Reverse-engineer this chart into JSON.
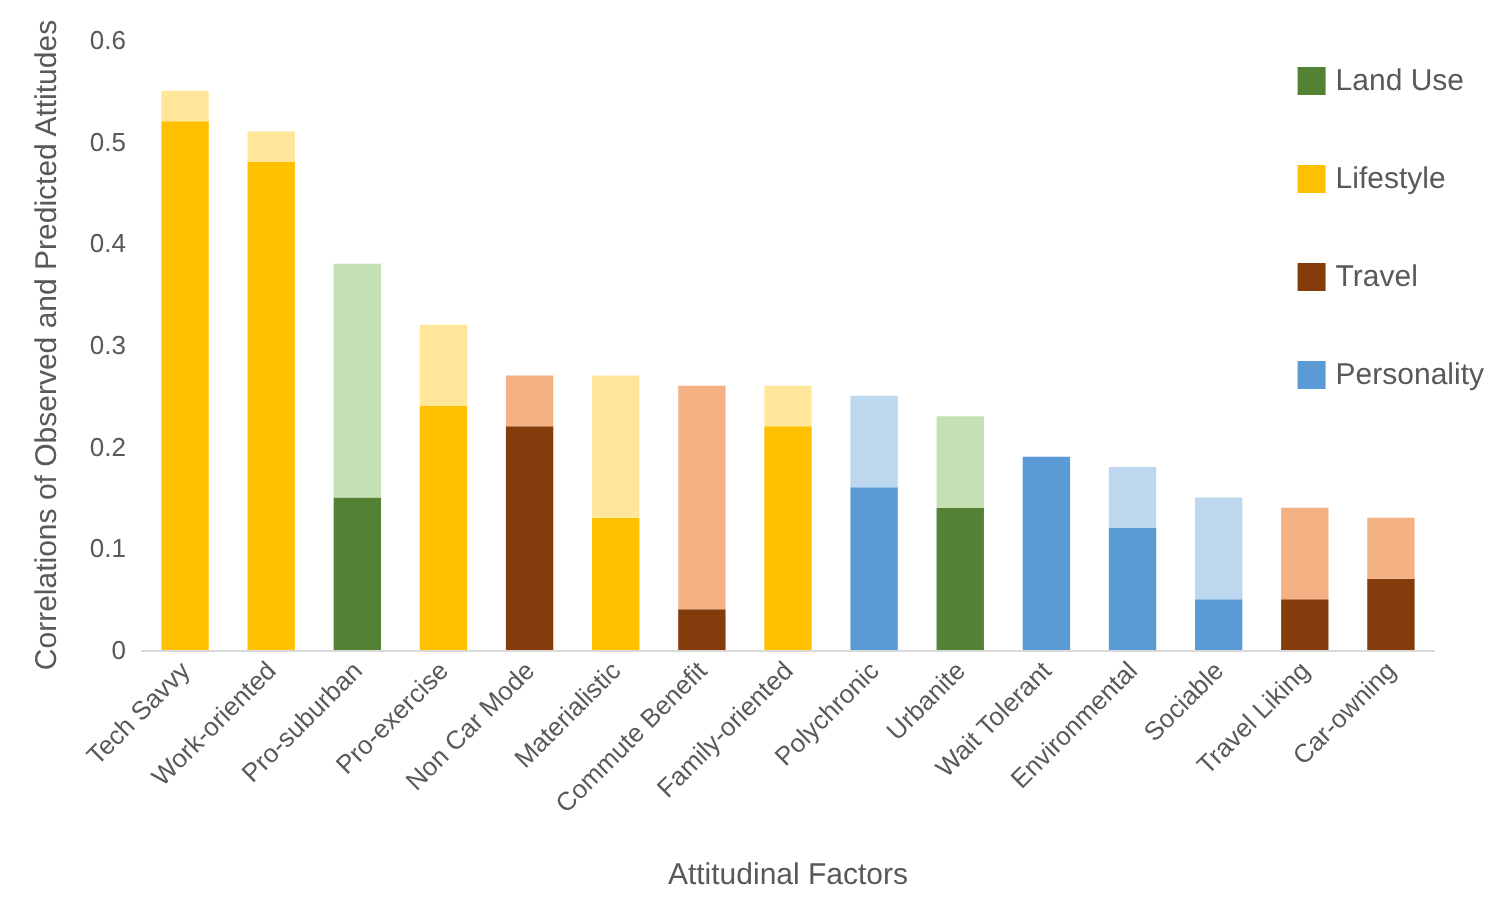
{
  "chart_data": {
    "type": "bar",
    "xlabel": "Attitudinal Factors",
    "ylabel": "Correlations of Observed and Predicted Attitudes",
    "categories": [
      "Tech Savvy",
      "Work-oriented",
      "Pro-suburban",
      "Pro-exercise",
      "Non Car Mode",
      "Materialistic",
      "Commute Benefit",
      "Family-oriented",
      "Polychronic",
      "Urbanite",
      "Wait Tolerant",
      "Environmental",
      "Sociable",
      "Travel Liking",
      "Car-owning"
    ],
    "stacked": true,
    "ylim": [
      0,
      0.6
    ],
    "yticks": [
      0,
      0.1,
      0.2,
      0.3,
      0.4,
      0.5,
      0.6
    ],
    "grid": false,
    "legend": "top right",
    "series": [
      {
        "name": "Land Use",
        "color": "#548235",
        "values": [
          null,
          null,
          0.15,
          null,
          null,
          null,
          null,
          null,
          null,
          0.14,
          null,
          null,
          null,
          null,
          null
        ]
      },
      {
        "name": "Lifestyle",
        "color": "#ffc000",
        "values": [
          0.52,
          0.48,
          null,
          0.24,
          null,
          0.13,
          null,
          0.22,
          null,
          null,
          null,
          null,
          null,
          null,
          null
        ]
      },
      {
        "name": "Travel",
        "color": "#843c0c",
        "values": [
          null,
          null,
          null,
          null,
          0.22,
          null,
          0.04,
          null,
          null,
          null,
          null,
          null,
          null,
          0.05,
          0.07
        ]
      },
      {
        "name": "Personality",
        "color": "#5b9bd5",
        "values": [
          null,
          null,
          null,
          null,
          null,
          null,
          null,
          null,
          0.16,
          null,
          0.19,
          0.12,
          0.05,
          null,
          null
        ]
      },
      {
        "color": "#c5e0b4",
        "values": [
          null,
          null,
          0.23,
          null,
          null,
          null,
          null,
          null,
          null,
          0.09,
          null,
          null,
          null,
          null,
          null
        ]
      },
      {
        "color": "#ffe699",
        "values": [
          0.03,
          0.03,
          null,
          0.08,
          null,
          0.14,
          null,
          0.04,
          null,
          null,
          null,
          null,
          null,
          null,
          null
        ]
      },
      {
        "color": "#f4b183",
        "values": [
          null,
          null,
          null,
          null,
          0.05,
          null,
          0.22,
          null,
          null,
          null,
          null,
          null,
          null,
          0.09,
          0.06
        ]
      },
      {
        "color": "#bdd7ee",
        "values": [
          null,
          null,
          null,
          null,
          null,
          null,
          null,
          null,
          0.09,
          null,
          null,
          0.06,
          0.1,
          null,
          null
        ]
      }
    ]
  }
}
